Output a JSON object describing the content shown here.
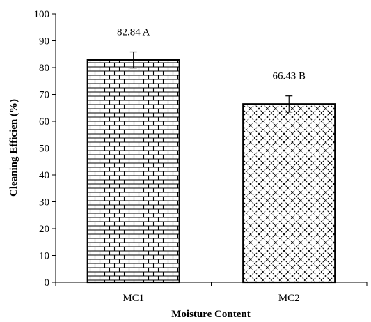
{
  "chart_data": {
    "type": "bar",
    "title": "",
    "xlabel": "Moisture Content",
    "ylabel": "Cleaning Efficien (%)",
    "categories": [
      "MC1",
      "MC2"
    ],
    "values": [
      82.84,
      66.43
    ],
    "error": [
      3.0,
      3.0
    ],
    "data_labels": [
      "82.84 A",
      "66.43 B"
    ],
    "bar_patterns": [
      "brick",
      "diagonal-weave"
    ],
    "ylim": [
      0,
      100
    ],
    "yticks": [
      "0",
      "10",
      "20",
      "30",
      "40",
      "50",
      "60",
      "70",
      "80",
      "90",
      "100"
    ],
    "grid": false,
    "legend": "none"
  }
}
